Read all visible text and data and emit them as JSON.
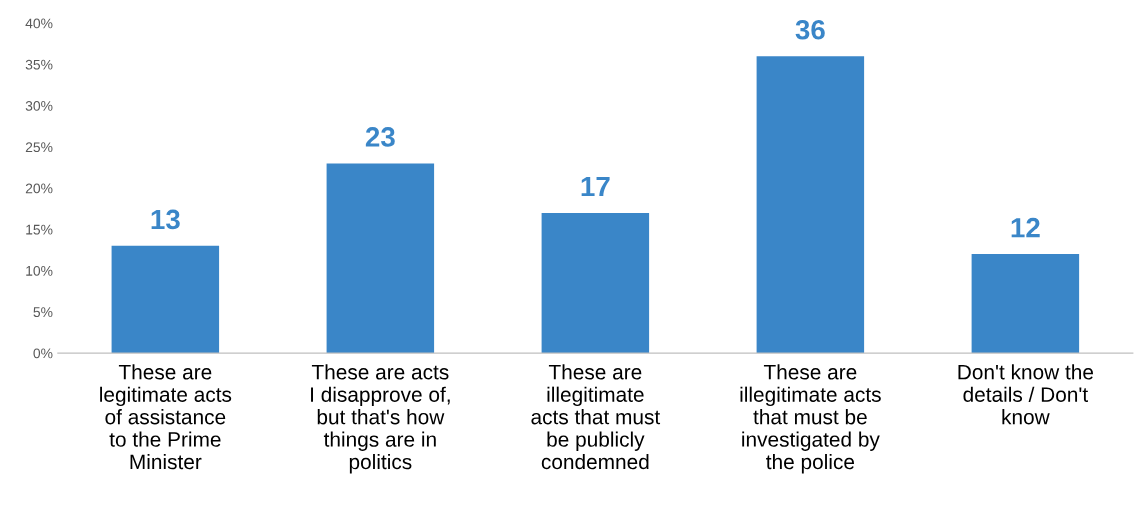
{
  "chart_data": {
    "type": "bar",
    "categories": [
      "These are\nlegitimate acts\nof assistance\nto the Prime\nMinister",
      "These are acts\nI disapprove of,\nbut that's how\nthings are in\npolitics",
      "These are\nillegitimate\nacts that must\nbe publicly\ncondemned",
      "These are\nillegitimate acts\nthat must be\ninvestigated by\nthe police",
      "Don't know the\ndetails / Don't\nknow"
    ],
    "values": [
      13,
      23,
      17,
      36,
      12
    ],
    "color": "#3a86c8",
    "data_labels": true,
    "ylim": [
      0,
      40
    ],
    "yticks": [
      {
        "value": 0,
        "label": "0%"
      },
      {
        "value": 5,
        "label": "5%"
      },
      {
        "value": 10,
        "label": "10%"
      },
      {
        "value": 15,
        "label": "15%"
      },
      {
        "value": 20,
        "label": "20%"
      },
      {
        "value": 25,
        "label": "25%"
      },
      {
        "value": 30,
        "label": "30%"
      },
      {
        "value": 35,
        "label": "35%"
      },
      {
        "value": 40,
        "label": "40%"
      }
    ],
    "grid": false,
    "legend": false
  }
}
